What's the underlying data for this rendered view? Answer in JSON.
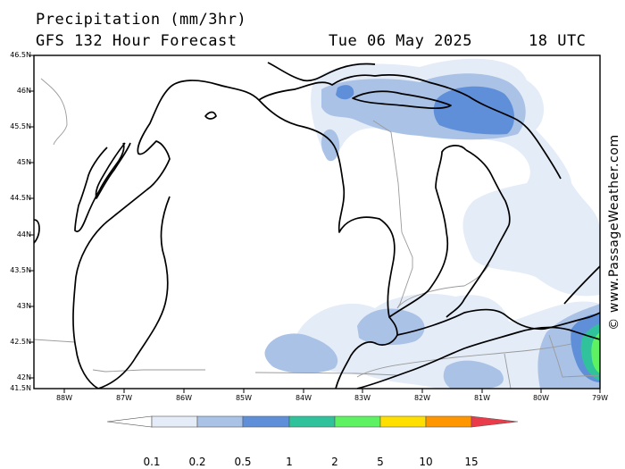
{
  "header": {
    "title": "Precipitation (mm/3hr)",
    "forecast": "GFS 132 Hour Forecast",
    "date": "Tue 06 May 2025",
    "time": "18 UTC"
  },
  "axes": {
    "lat_labels": [
      "46.5N",
      "46N",
      "45.5N",
      "45N",
      "44.5N",
      "44N",
      "43.5N",
      "43N",
      "42.5N",
      "42N",
      "41.5N"
    ],
    "lon_labels": [
      "88W",
      "87W",
      "86W",
      "85W",
      "84W",
      "83W",
      "82W",
      "81W",
      "80W",
      "79W"
    ]
  },
  "credit": "© www.PassageWeather.com",
  "legend": {
    "labels": [
      "0.1",
      "0.2",
      "0.5",
      "1",
      "2",
      "5",
      "10",
      "15"
    ],
    "colors": [
      "#ffffff",
      "#e4ecf8",
      "#aac2e6",
      "#5f8fd8",
      "#30c29a",
      "#5ef262",
      "#ffdf00",
      "#ff9600",
      "#ea3b4a"
    ]
  },
  "colors": {
    "lightest": "#e4ecf8",
    "light": "#aac2e6",
    "medium": "#5f8fd8",
    "teal": "#30c29a",
    "green": "#5ef262",
    "border": "#9a9a9a"
  }
}
